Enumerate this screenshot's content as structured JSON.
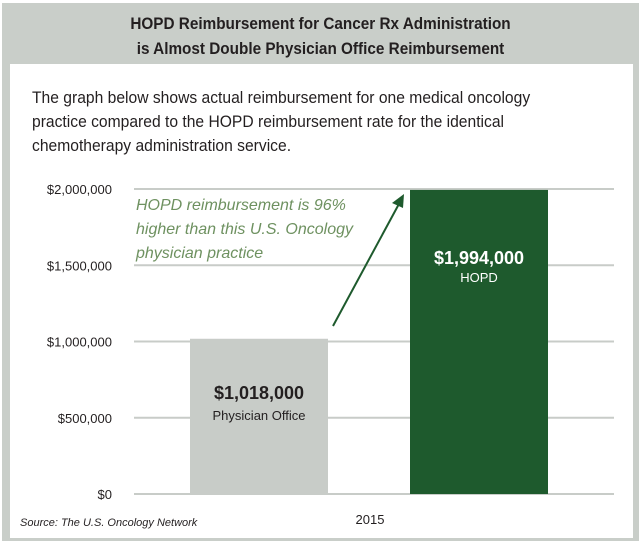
{
  "title_line1": "HOPD Reimbursement for Cancer Rx Administration",
  "title_line2": "is Almost Double Physician Office Reimbursement",
  "intro_lines": [
    "The graph below shows actual reimbursement for one medical oncology",
    "practice compared to the HOPD reimbursement rate for the identical",
    "chemotherapy administration service."
  ],
  "source": "Source: The U.S. Oncology Network",
  "colors": {
    "physician": "#c8ccc8",
    "hopd": "#1e5a2d",
    "annotation": "#6e9160",
    "frame": "#c9cec9"
  },
  "chart_data": {
    "type": "bar",
    "categories": [
      "2015"
    ],
    "series": [
      {
        "name": "Physician Office",
        "values": [
          1018000
        ],
        "label": "$1,018,000"
      },
      {
        "name": "HOPD",
        "values": [
          1994000
        ],
        "label": "$1,994,000"
      }
    ],
    "ylim": [
      0,
      2000000
    ],
    "yticks": [
      0,
      500000,
      1000000,
      1500000,
      2000000
    ],
    "ytick_labels": [
      "$0",
      "$500,000",
      "$1,000,000",
      "$1,500,000",
      "$2,000,000"
    ],
    "grid": true,
    "annotation_lines": [
      "HOPD reimbursement is 96%",
      "higher than this U.S. Oncology",
      "physician practice"
    ]
  }
}
